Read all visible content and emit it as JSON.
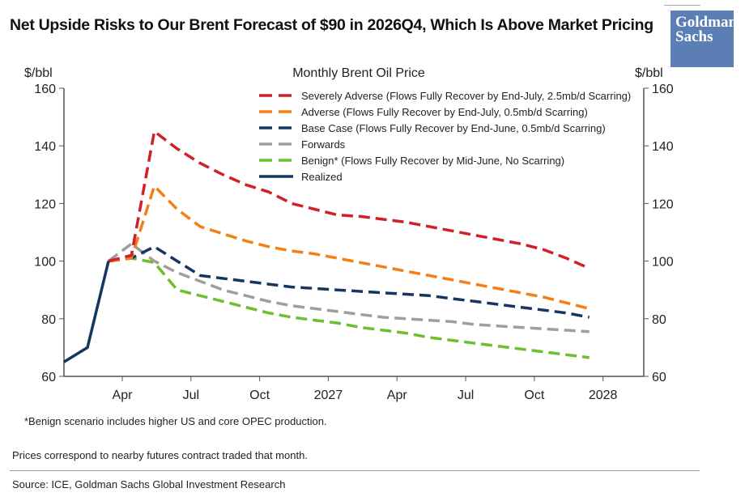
{
  "title": "Net Upside Risks to Our Brent Forecast of $90 in 2026Q4, Which Is Above Market Pricing",
  "logo": {
    "line1": "Goldman",
    "line2": "Sachs",
    "color": "#5b7fb5"
  },
  "chart_data": {
    "type": "line",
    "title": "Monthly Brent Oil Price",
    "ylabel_left": "$/bbl",
    "ylabel_right": "$/bbl",
    "ylim": [
      60,
      160
    ],
    "yticks": [
      60,
      80,
      100,
      120,
      140,
      160
    ],
    "x_unit": "months since Jan 2026",
    "xticks": [
      {
        "m": 3,
        "label": "Apr"
      },
      {
        "m": 6,
        "label": "Jul"
      },
      {
        "m": 9,
        "label": "Oct"
      },
      {
        "m": 12,
        "label": "2027"
      },
      {
        "m": 15,
        "label": "Apr"
      },
      {
        "m": 18,
        "label": "Jul"
      },
      {
        "m": 21,
        "label": "Oct"
      },
      {
        "m": 24,
        "label": "2028"
      }
    ],
    "scenario_x": [
      2.4,
      3.4,
      4.4,
      5.4,
      6.4,
      7.4,
      8.4,
      9.4,
      10.4,
      11.4,
      12.4,
      13.4,
      14.4,
      15.4,
      16.4,
      17.4,
      18.4,
      19.4,
      20.4,
      21.4,
      22.4,
      23.4
    ],
    "series": [
      {
        "name": "Severely Adverse (Flows Fully Recover by End-July, 2.5mb/d Scarring)",
        "color": "#d0202a",
        "dash": true,
        "values": [
          100,
          102,
          145,
          139,
          134,
          130,
          126.5,
          124,
          120,
          118,
          116,
          115.5,
          114.5,
          113.5,
          112,
          110.5,
          109,
          107.5,
          106,
          104,
          101,
          97.5
        ]
      },
      {
        "name": "Adverse (Flows Fully Recover by End-July, 0.5mb/d Scarring)",
        "color": "#f57f17",
        "dash": true,
        "values": [
          100,
          101,
          126,
          118,
          112,
          109.5,
          107,
          105,
          103.5,
          102.5,
          101,
          99.5,
          98,
          96.5,
          95,
          93.5,
          92,
          90.5,
          89,
          87.5,
          85.5,
          83.5
        ]
      },
      {
        "name": "Base Case (Flows Fully Recover by End-June, 0.5mb/d Scarring)",
        "color": "#14365f",
        "dash": true,
        "values": [
          100,
          101,
          105,
          100,
          95,
          94,
          93,
          92,
          91,
          90.5,
          90,
          89.5,
          89,
          88.5,
          88,
          87,
          86,
          85,
          84,
          83,
          82,
          80.5
        ]
      },
      {
        "name": "Forwards",
        "color": "#9e9e9e",
        "dash": true,
        "values": [
          100,
          106,
          100,
          96,
          93,
          90,
          88,
          86,
          84.5,
          83.5,
          82.5,
          81.5,
          80.5,
          80,
          79.5,
          79,
          78,
          77.5,
          77,
          76.5,
          76,
          75.5
        ]
      },
      {
        "name": "Benign* (Flows Fully Recover by Mid-June, No Scarring)",
        "color": "#6cbf2e",
        "dash": true,
        "values": [
          100,
          101,
          99.5,
          90,
          88,
          86,
          84,
          82,
          80.5,
          79.5,
          78.5,
          77,
          76,
          75,
          73.5,
          72.5,
          71.5,
          70.5,
          69.5,
          68.5,
          67.5,
          66.5
        ]
      },
      {
        "name": "Realized",
        "color": "#14365f",
        "dash": false,
        "x": [
          0.45,
          1.48,
          2.4
        ],
        "values": [
          65,
          70,
          100
        ]
      }
    ],
    "legend_placement": "top-right"
  },
  "footnote": "*Benign scenario includes higher US and core OPEC production.",
  "note": "Prices correspond to nearby futures contract traded that month.",
  "source": "Source: ICE, Goldman Sachs Global Investment Research"
}
